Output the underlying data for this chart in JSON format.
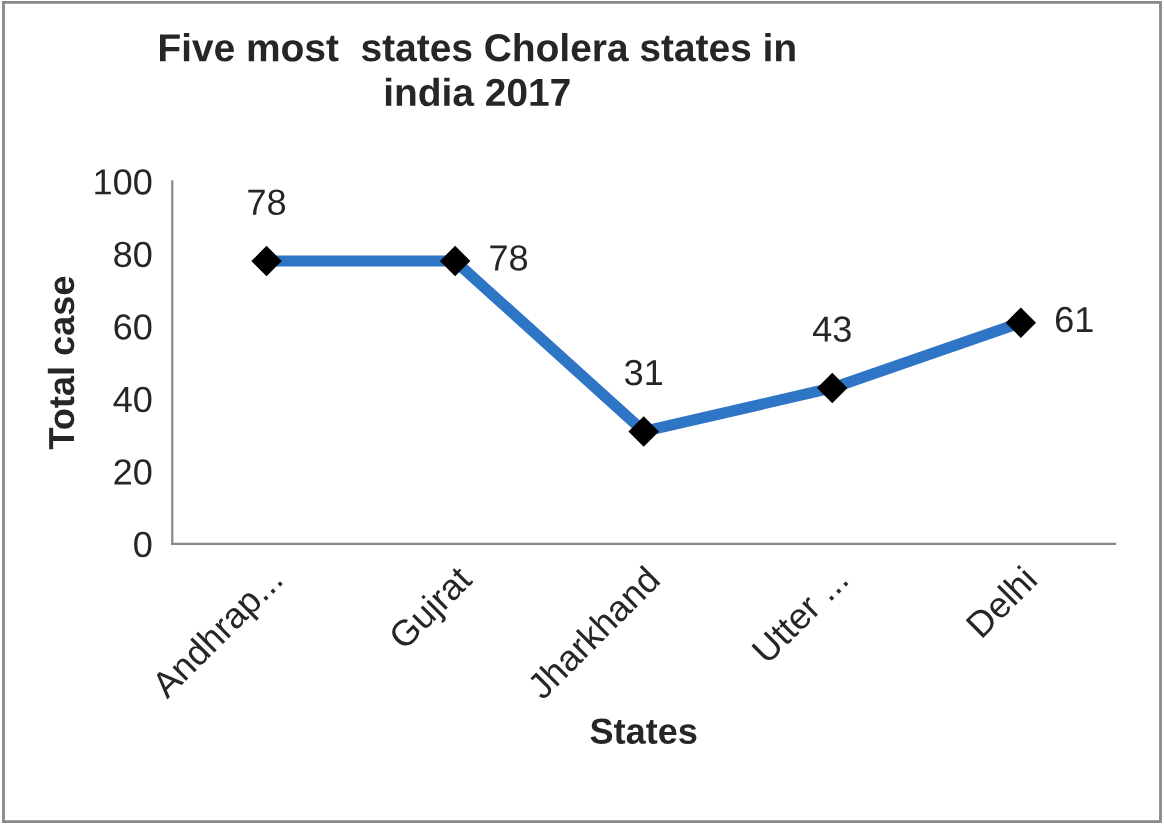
{
  "chart_data": {
    "type": "line",
    "title": "Five most  states Cholera states in\nindia 2017",
    "xlabel": "States",
    "ylabel": "Total case",
    "categories": [
      "Andhrap...",
      "Gujrat",
      "Jharkhand",
      "Utter ...",
      "Delhi"
    ],
    "series": [
      {
        "color": "#2e75c6",
        "values": [
          78,
          78,
          31,
          43,
          61
        ]
      }
    ],
    "ylim": [
      0,
      100
    ],
    "yticks": [
      0,
      20,
      40,
      60,
      80,
      100
    ],
    "grid": false,
    "legend": false,
    "marker": "diamond",
    "line_style": "solid",
    "data_labels": true
  }
}
